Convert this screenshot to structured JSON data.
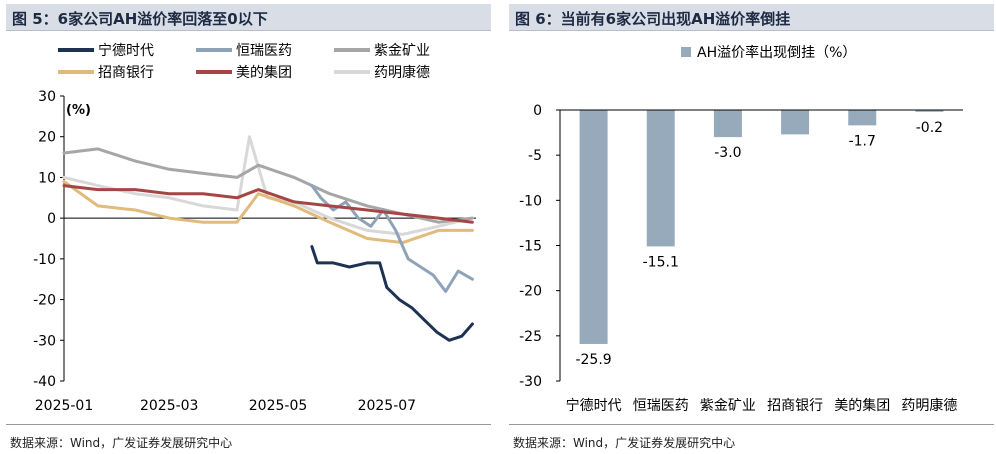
{
  "left": {
    "title": "图 5：6家公司AH溢价率回落至0以下",
    "source": "数据来源：Wind，广发证券发展研究中心"
  },
  "right": {
    "title": "图 6：当前有6家公司出现AH溢价率倒挂",
    "source": "数据来源：Wind，广发证券发展研究中心"
  },
  "chart_data": [
    {
      "type": "line",
      "title": "",
      "ylabel": "(%)",
      "ylim": [
        -40,
        30
      ],
      "yticks": [
        30,
        20,
        10,
        0,
        -10,
        -20,
        -30,
        -40
      ],
      "xticks": [
        "2025-01",
        "2025-03",
        "2025-05",
        "2025-07"
      ],
      "xlim": [
        "2025-01-01",
        "2025-08-20"
      ],
      "legend": "top",
      "series": [
        {
          "name": "宁德时代",
          "color": "#1e3253",
          "x": [
            "2025-05-20",
            "2025-05-23",
            "2025-06-01",
            "2025-06-10",
            "2025-06-20",
            "2025-06-27",
            "2025-07-01",
            "2025-07-08",
            "2025-07-15",
            "2025-07-22",
            "2025-07-29",
            "2025-08-05",
            "2025-08-12",
            "2025-08-18"
          ],
          "y": [
            -7,
            -11,
            -11,
            -12,
            -11,
            -11,
            -17,
            -20,
            -22,
            -25,
            -28,
            -30,
            -29,
            -26
          ]
        },
        {
          "name": "恒瑞医药",
          "color": "#8fa3b8",
          "x": [
            "2025-05-20",
            "2025-05-25",
            "2025-06-01",
            "2025-06-08",
            "2025-06-15",
            "2025-06-22",
            "2025-06-29",
            "2025-07-06",
            "2025-07-13",
            "2025-07-20",
            "2025-07-27",
            "2025-08-03",
            "2025-08-10",
            "2025-08-18"
          ],
          "y": [
            8,
            5,
            2,
            4,
            0,
            -2,
            2,
            -3,
            -10,
            -12,
            -14,
            -18,
            -13,
            -15
          ]
        },
        {
          "name": "紫金矿业",
          "color": "#a6a6a6",
          "x": [
            "2025-01-01",
            "2025-01-20",
            "2025-02-10",
            "2025-03-01",
            "2025-03-20",
            "2025-04-08",
            "2025-04-20",
            "2025-05-10",
            "2025-05-30",
            "2025-06-20",
            "2025-07-10",
            "2025-07-30",
            "2025-08-18"
          ],
          "y": [
            16,
            17,
            14,
            12,
            11,
            10,
            13,
            10,
            6,
            3,
            1,
            -1,
            0
          ]
        },
        {
          "name": "招商银行",
          "color": "#e0bb7c",
          "x": [
            "2025-01-01",
            "2025-01-20",
            "2025-02-10",
            "2025-03-01",
            "2025-03-20",
            "2025-04-08",
            "2025-04-20",
            "2025-05-10",
            "2025-05-30",
            "2025-06-20",
            "2025-07-10",
            "2025-07-30",
            "2025-08-18"
          ],
          "y": [
            9,
            3,
            2,
            0,
            -1,
            -1,
            6,
            3,
            -1,
            -5,
            -6,
            -3,
            -3
          ]
        },
        {
          "name": "美的集团",
          "color": "#a54545",
          "x": [
            "2025-01-01",
            "2025-01-20",
            "2025-02-10",
            "2025-03-01",
            "2025-03-20",
            "2025-04-08",
            "2025-04-20",
            "2025-05-10",
            "2025-05-30",
            "2025-06-20",
            "2025-07-10",
            "2025-07-30",
            "2025-08-18"
          ],
          "y": [
            8,
            7,
            7,
            6,
            6,
            5,
            7,
            4,
            3,
            2,
            1,
            0,
            -1
          ]
        },
        {
          "name": "药明康德",
          "color": "#d8d8d8",
          "x": [
            "2025-01-01",
            "2025-01-20",
            "2025-02-10",
            "2025-03-01",
            "2025-03-20",
            "2025-04-08",
            "2025-04-15",
            "2025-04-25",
            "2025-05-10",
            "2025-05-30",
            "2025-06-20",
            "2025-07-10",
            "2025-07-30",
            "2025-08-18"
          ],
          "y": [
            10,
            8,
            6,
            5,
            3,
            2,
            20,
            5,
            4,
            0,
            -3,
            -4,
            -2,
            0
          ]
        }
      ]
    },
    {
      "type": "bar",
      "title": "",
      "legend": "top",
      "series": [
        {
          "name": "AH溢价率出现倒挂（%）",
          "color": "#97aabc"
        }
      ],
      "categories": [
        "宁德时代",
        "恒瑞医药",
        "紫金矿业",
        "招商银行",
        "美的集团",
        "药明康德"
      ],
      "values": [
        -25.9,
        -15.1,
        -3.0,
        -2.7,
        -1.7,
        -0.2
      ],
      "labeled": [
        true,
        true,
        true,
        false,
        true,
        true
      ],
      "ylim": [
        -30,
        0
      ],
      "yticks": [
        0,
        -5,
        -10,
        -15,
        -20,
        -25,
        -30
      ]
    }
  ]
}
